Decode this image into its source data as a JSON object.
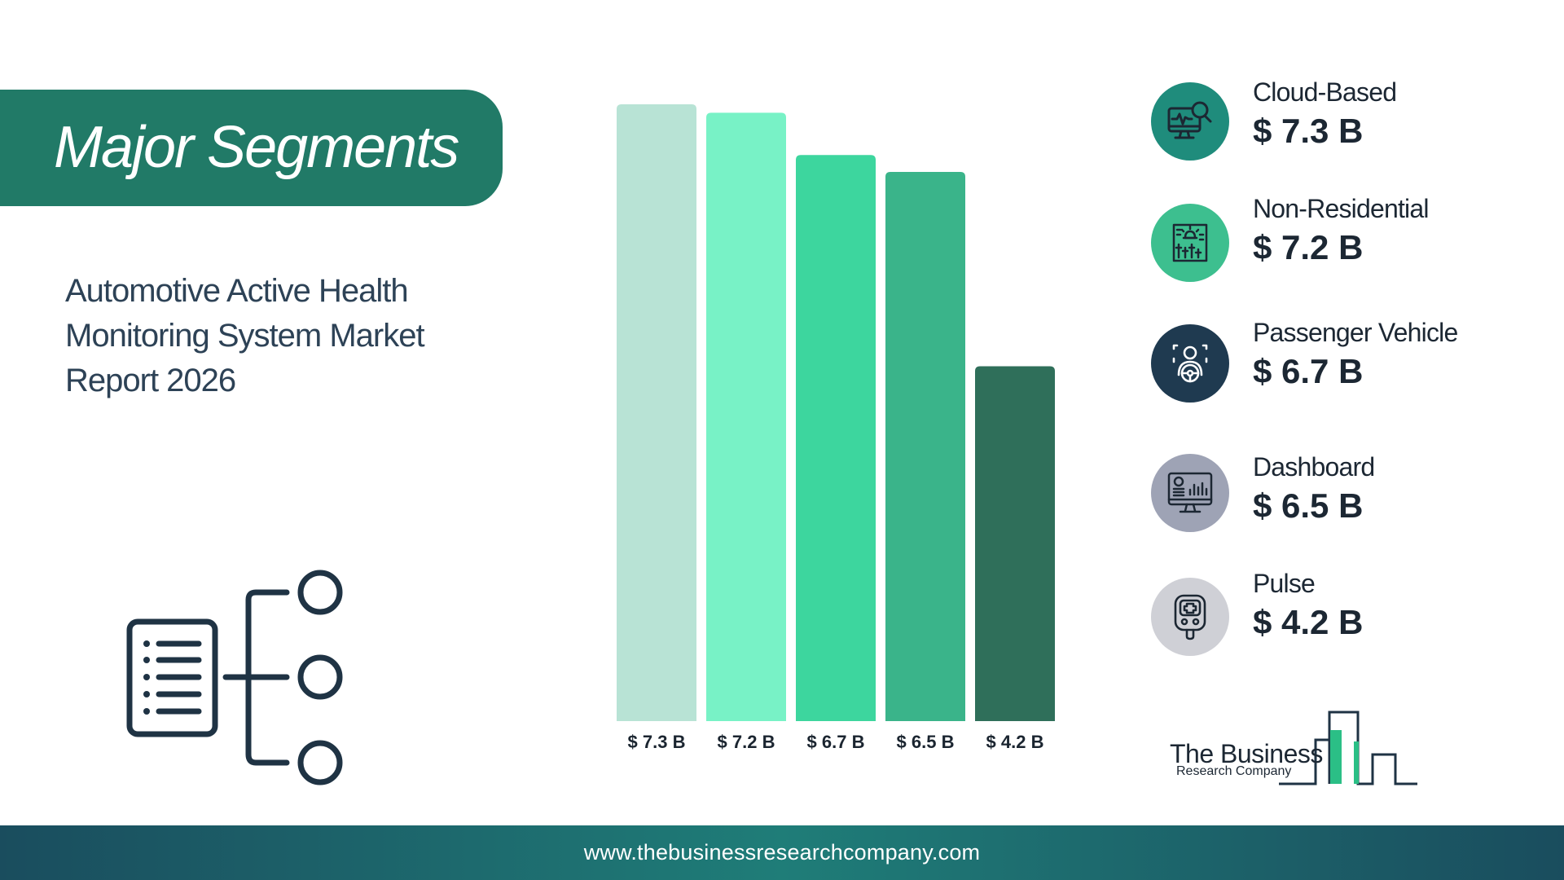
{
  "header": {
    "title": "Major Segments"
  },
  "report": {
    "title_lines": [
      "Automotive Active Health",
      "Monitoring System Market",
      "Report 2026"
    ]
  },
  "chart_data": {
    "type": "bar",
    "categories": [
      "Cloud-Based",
      "Non-Residential",
      "Passenger Vehicle",
      "Dashboard",
      "Pulse"
    ],
    "values": [
      7.3,
      7.2,
      6.7,
      6.5,
      4.2
    ],
    "value_labels": [
      "$ 7.3 B",
      "$ 7.2 B",
      "$ 6.7 B",
      "$ 6.5 B",
      "$ 4.2 B"
    ],
    "unit": "B",
    "colors": [
      "#b8e3d5",
      "#78f2c6",
      "#3dd69e",
      "#3ab48a",
      "#2f6f5a"
    ],
    "ylim": [
      0,
      7.3
    ],
    "grid": false
  },
  "segments": [
    {
      "name": "Cloud-Based",
      "value": "$ 7.3 B",
      "icon": "monitor-search-icon",
      "color": "#1f8c7c"
    },
    {
      "name": "Non-Residential",
      "value": "$ 7.2 B",
      "icon": "building-alarm-icon",
      "color": "#3dbf8f"
    },
    {
      "name": "Passenger Vehicle",
      "value": "$ 6.7 B",
      "icon": "driver-steering-icon",
      "color": "#1f3a50"
    },
    {
      "name": "Dashboard",
      "value": "$ 6.5 B",
      "icon": "monitor-dashboard-icon",
      "color": "#9ea3b5"
    },
    {
      "name": "Pulse",
      "value": "$ 4.2 B",
      "icon": "pulse-device-icon",
      "color": "#cfd0d6"
    }
  ],
  "logo": {
    "line1": "The Business",
    "line2": "Research Company"
  },
  "footer": {
    "url": "www.thebusinessresearchcompany.com"
  }
}
